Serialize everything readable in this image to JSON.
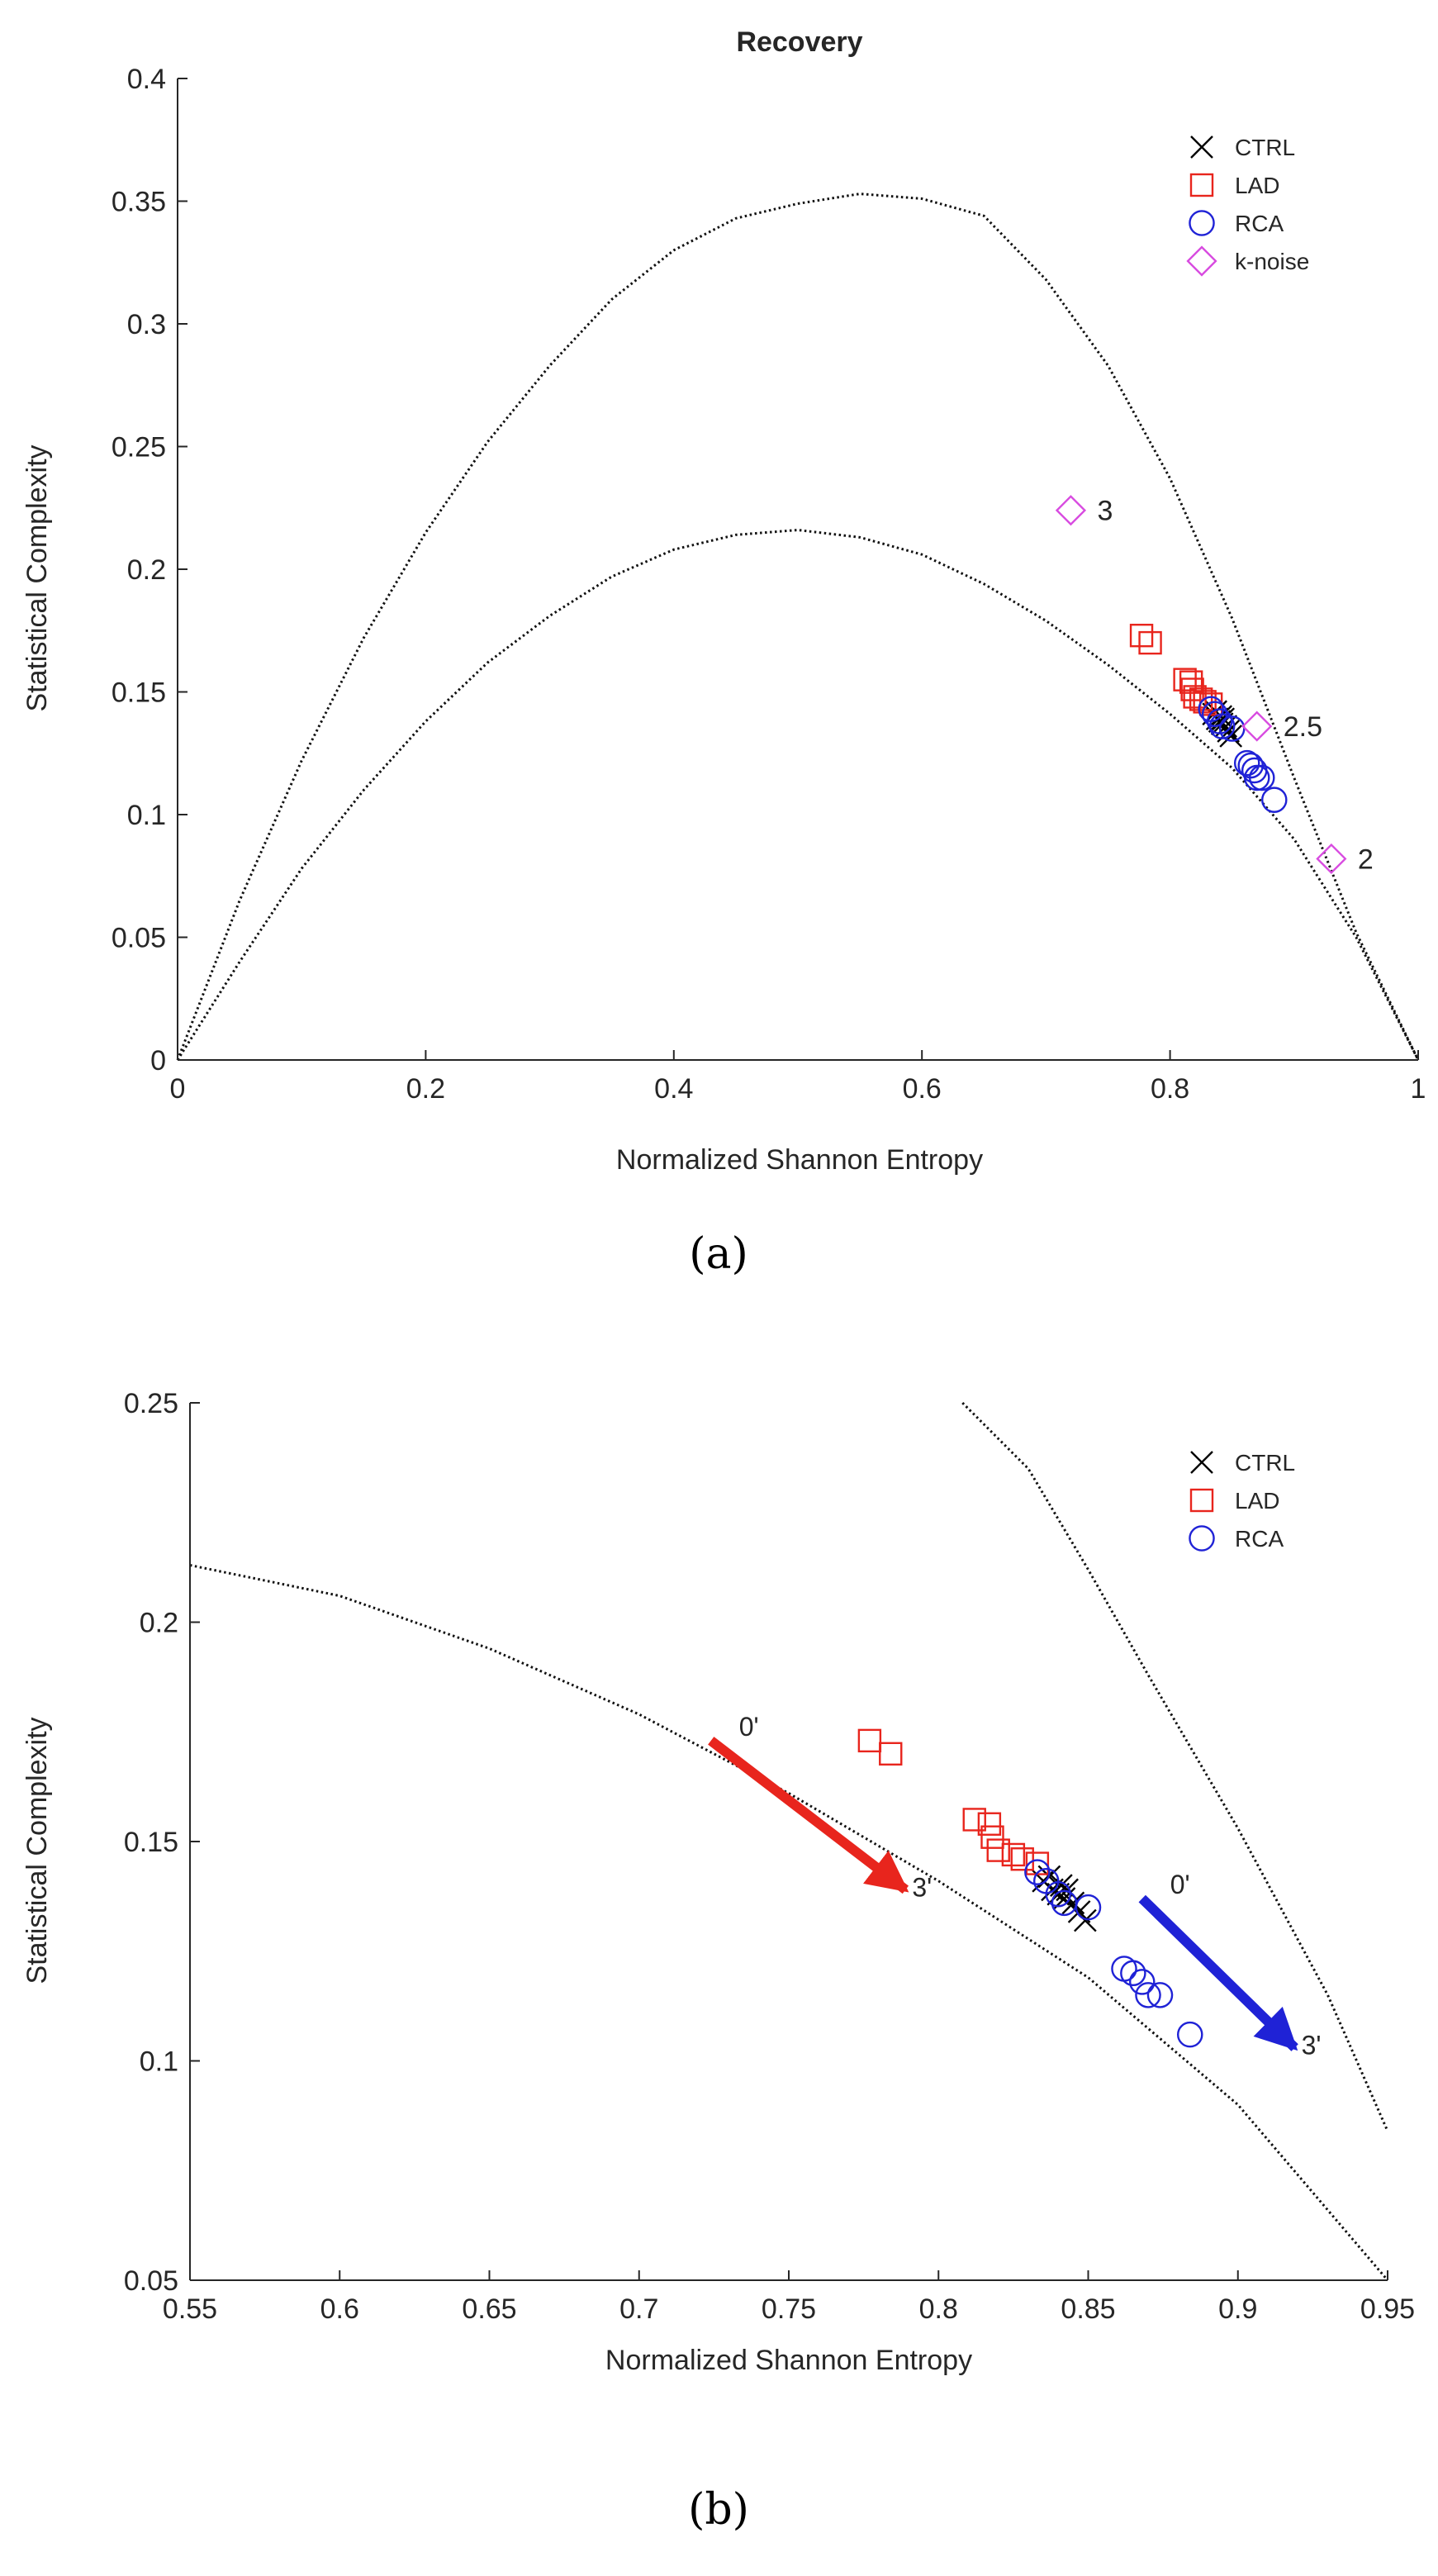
{
  "chart_data": [
    {
      "id": "a",
      "type": "scatter",
      "title": "Recovery",
      "xlabel": "Normalized Shannon Entropy",
      "ylabel": "Statistical Complexity",
      "xlim": [
        0,
        1
      ],
      "ylim": [
        0,
        0.4
      ],
      "xticks": [
        0,
        0.2,
        0.4,
        0.6,
        0.8,
        1
      ],
      "xtick_labels": [
        "0",
        "0.2",
        "0.4",
        "0.6",
        "0.8",
        "1"
      ],
      "yticks": [
        0,
        0.05,
        0.1,
        0.15,
        0.2,
        0.25,
        0.3,
        0.35,
        0.4
      ],
      "ytick_labels": [
        "0",
        "0.05",
        "0.1",
        "0.15",
        "0.2",
        "0.25",
        "0.3",
        "0.35",
        "0.4"
      ],
      "caption": "(a)",
      "legend": [
        {
          "name": "CTRL",
          "marker": "x",
          "color": "#000000"
        },
        {
          "name": "LAD",
          "marker": "square",
          "color": "#e8251d"
        },
        {
          "name": "RCA",
          "marker": "circle",
          "color": "#1f22d6"
        },
        {
          "name": "k-noise",
          "marker": "diamond",
          "color": "#d84be0"
        }
      ],
      "boundaries": {
        "upper": [
          [
            0,
            0
          ],
          [
            0.05,
            0.065
          ],
          [
            0.1,
            0.122
          ],
          [
            0.15,
            0.172
          ],
          [
            0.2,
            0.215
          ],
          [
            0.25,
            0.252
          ],
          [
            0.3,
            0.283
          ],
          [
            0.35,
            0.31
          ],
          [
            0.4,
            0.33
          ],
          [
            0.45,
            0.343
          ],
          [
            0.5,
            0.349
          ],
          [
            0.55,
            0.353
          ],
          [
            0.6,
            0.351
          ],
          [
            0.65,
            0.344
          ],
          [
            0.7,
            0.318
          ],
          [
            0.75,
            0.283
          ],
          [
            0.8,
            0.237
          ],
          [
            0.85,
            0.18
          ],
          [
            0.9,
            0.115
          ],
          [
            0.95,
            0.052
          ],
          [
            1,
            0
          ]
        ],
        "lower": [
          [
            0,
            0
          ],
          [
            0.05,
            0.04
          ],
          [
            0.1,
            0.078
          ],
          [
            0.15,
            0.11
          ],
          [
            0.2,
            0.138
          ],
          [
            0.25,
            0.162
          ],
          [
            0.3,
            0.181
          ],
          [
            0.35,
            0.197
          ],
          [
            0.4,
            0.208
          ],
          [
            0.45,
            0.214
          ],
          [
            0.5,
            0.216
          ],
          [
            0.55,
            0.213
          ],
          [
            0.6,
            0.206
          ],
          [
            0.65,
            0.194
          ],
          [
            0.7,
            0.179
          ],
          [
            0.75,
            0.161
          ],
          [
            0.8,
            0.141
          ],
          [
            0.85,
            0.119
          ],
          [
            0.9,
            0.09
          ],
          [
            0.95,
            0.05
          ],
          [
            1,
            0
          ]
        ]
      },
      "series": [
        {
          "name": "CTRL",
          "points": [
            [
              0.835,
              0.141
            ],
            [
              0.838,
              0.139
            ],
            [
              0.84,
              0.138
            ],
            [
              0.842,
              0.137
            ],
            [
              0.845,
              0.136
            ],
            [
              0.843,
              0.139
            ],
            [
              0.847,
              0.134
            ],
            [
              0.849,
              0.132
            ],
            [
              0.841,
              0.14
            ],
            [
              0.837,
              0.142
            ]
          ]
        },
        {
          "name": "LAD",
          "points": [
            [
              0.777,
              0.173
            ],
            [
              0.784,
              0.17
            ],
            [
              0.812,
              0.155
            ],
            [
              0.817,
              0.154
            ],
            [
              0.818,
              0.151
            ],
            [
              0.82,
              0.148
            ],
            [
              0.825,
              0.147
            ],
            [
              0.828,
              0.146
            ],
            [
              0.833,
              0.145
            ]
          ]
        },
        {
          "name": "RCA",
          "points": [
            [
              0.833,
              0.143
            ],
            [
              0.836,
              0.141
            ],
            [
              0.84,
              0.138
            ],
            [
              0.842,
              0.136
            ],
            [
              0.85,
              0.135
            ],
            [
              0.862,
              0.121
            ],
            [
              0.865,
              0.12
            ],
            [
              0.868,
              0.118
            ],
            [
              0.87,
              0.115
            ],
            [
              0.874,
              0.115
            ],
            [
              0.884,
              0.106
            ]
          ]
        },
        {
          "name": "k-noise",
          "points": [
            [
              0.72,
              0.224
            ],
            [
              0.87,
              0.136
            ],
            [
              0.93,
              0.082
            ]
          ],
          "labels": [
            "3",
            "2.5",
            "2"
          ]
        }
      ]
    },
    {
      "id": "b",
      "type": "scatter",
      "title": "",
      "xlabel": "Normalized Shannon Entropy",
      "ylabel": "Statistical Complexity",
      "xlim": [
        0.55,
        0.95
      ],
      "ylim": [
        0.05,
        0.25
      ],
      "xticks": [
        0.55,
        0.6,
        0.65,
        0.7,
        0.75,
        0.8,
        0.85,
        0.9,
        0.95
      ],
      "xtick_labels": [
        "0.55",
        "0.6",
        "0.65",
        "0.7",
        "0.75",
        "0.8",
        "0.85",
        "0.9",
        "0.95"
      ],
      "yticks": [
        0.05,
        0.1,
        0.15,
        0.2,
        0.25
      ],
      "ytick_labels": [
        "0.05",
        "0.1",
        "0.15",
        "0.2",
        "0.25"
      ],
      "caption": "(b)",
      "legend": [
        {
          "name": "CTRL",
          "marker": "x",
          "color": "#000000"
        },
        {
          "name": "LAD",
          "marker": "square",
          "color": "#e8251d"
        },
        {
          "name": "RCA",
          "marker": "circle",
          "color": "#1f22d6"
        }
      ],
      "boundaries": {
        "lower": [
          [
            0.55,
            0.213
          ],
          [
            0.6,
            0.206
          ],
          [
            0.65,
            0.194
          ],
          [
            0.7,
            0.179
          ],
          [
            0.75,
            0.161
          ],
          [
            0.8,
            0.141
          ],
          [
            0.85,
            0.119
          ],
          [
            0.9,
            0.09
          ],
          [
            0.95,
            0.05
          ]
        ],
        "upper": [
          [
            0.808,
            0.25
          ],
          [
            0.83,
            0.235
          ],
          [
            0.85,
            0.212
          ],
          [
            0.87,
            0.188
          ],
          [
            0.9,
            0.153
          ],
          [
            0.93,
            0.115
          ],
          [
            0.95,
            0.084
          ]
        ]
      },
      "series": [
        {
          "name": "CTRL",
          "points": [
            [
              0.835,
              0.141
            ],
            [
              0.838,
              0.139
            ],
            [
              0.84,
              0.138
            ],
            [
              0.842,
              0.137
            ],
            [
              0.845,
              0.136
            ],
            [
              0.843,
              0.139
            ],
            [
              0.847,
              0.134
            ],
            [
              0.849,
              0.132
            ],
            [
              0.841,
              0.14
            ],
            [
              0.837,
              0.142
            ]
          ]
        },
        {
          "name": "LAD",
          "points": [
            [
              0.777,
              0.173
            ],
            [
              0.784,
              0.17
            ],
            [
              0.812,
              0.155
            ],
            [
              0.817,
              0.154
            ],
            [
              0.818,
              0.151
            ],
            [
              0.82,
              0.148
            ],
            [
              0.825,
              0.147
            ],
            [
              0.828,
              0.146
            ],
            [
              0.833,
              0.145
            ]
          ]
        },
        {
          "name": "RCA",
          "points": [
            [
              0.833,
              0.143
            ],
            [
              0.836,
              0.141
            ],
            [
              0.84,
              0.138
            ],
            [
              0.842,
              0.136
            ],
            [
              0.85,
              0.135
            ],
            [
              0.862,
              0.121
            ],
            [
              0.865,
              0.12
            ],
            [
              0.868,
              0.118
            ],
            [
              0.87,
              0.115
            ],
            [
              0.874,
              0.115
            ],
            [
              0.884,
              0.106
            ]
          ]
        }
      ],
      "arrows": [
        {
          "name": "LAD",
          "color": "#e8251d",
          "from": [
            0.724,
            0.173
          ],
          "to": [
            0.789,
            0.139
          ],
          "start_label": "0'",
          "end_label": "3'"
        },
        {
          "name": "RCA",
          "color": "#1f22d6",
          "from": [
            0.868,
            0.137
          ],
          "to": [
            0.919,
            0.103
          ],
          "start_label": "0'",
          "end_label": "3'"
        }
      ]
    }
  ]
}
